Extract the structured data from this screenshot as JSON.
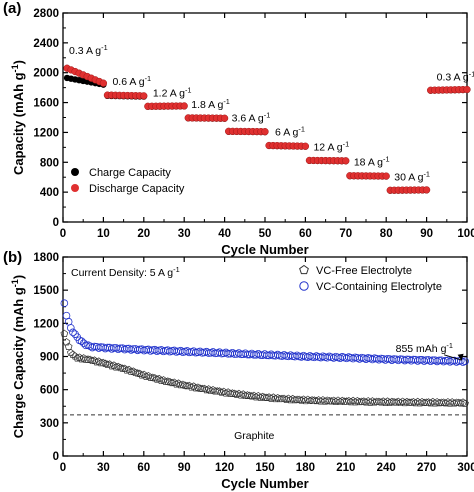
{
  "chart_data": [
    {
      "type": "scatter",
      "panel_label": "(a)",
      "xlabel": "Cycle Number",
      "ylabel": "Capacity (mAh g⁻¹)",
      "xlim": [
        0,
        100
      ],
      "ylim": [
        0,
        2800
      ],
      "xticks": [
        0,
        10,
        20,
        30,
        40,
        50,
        60,
        70,
        80,
        90,
        100
      ],
      "yticks": [
        0,
        400,
        800,
        1200,
        1600,
        2000,
        2400,
        2800
      ],
      "legend_position": "bottom-left",
      "series": [
        {
          "name": "Charge Capacity",
          "color": "#000000"
        },
        {
          "name": "Discharge Capacity",
          "color": "#e03030"
        }
      ],
      "rate_steps": [
        {
          "label": "0.3 A g⁻¹",
          "from": 1,
          "to": 10,
          "charge_start": 1930,
          "charge_end": 1840,
          "discharge_start": 2060,
          "discharge_end": 1860
        },
        {
          "label": "0.6 A g⁻¹",
          "from": 11,
          "to": 20,
          "charge_start": 1690,
          "charge_end": 1680,
          "discharge_start": 1700,
          "discharge_end": 1690
        },
        {
          "label": "1.2 A g⁻¹",
          "from": 21,
          "to": 30,
          "charge_start": 1545,
          "charge_end": 1550,
          "discharge_start": 1550,
          "discharge_end": 1555
        },
        {
          "label": "1.8 A g⁻¹",
          "from": 31,
          "to": 40,
          "charge_start": 1390,
          "charge_end": 1385,
          "discharge_start": 1395,
          "discharge_end": 1390
        },
        {
          "label": "3.6 A g⁻¹",
          "from": 41,
          "to": 50,
          "charge_start": 1210,
          "charge_end": 1205,
          "discharge_start": 1215,
          "discharge_end": 1210
        },
        {
          "label": "6 A g⁻¹",
          "from": 51,
          "to": 60,
          "charge_start": 1020,
          "charge_end": 1010,
          "discharge_start": 1025,
          "discharge_end": 1015
        },
        {
          "label": "12 A g⁻¹",
          "from": 61,
          "to": 70,
          "charge_start": 820,
          "charge_end": 815,
          "discharge_start": 825,
          "discharge_end": 820
        },
        {
          "label": "18 A g⁻¹",
          "from": 71,
          "to": 80,
          "charge_start": 615,
          "charge_end": 610,
          "discharge_start": 620,
          "discharge_end": 615
        },
        {
          "label": "30 A g⁻¹",
          "from": 81,
          "to": 90,
          "charge_start": 420,
          "charge_end": 425,
          "discharge_start": 425,
          "discharge_end": 430
        },
        {
          "label": "0.3 A g⁻¹",
          "from": 91,
          "to": 100,
          "charge_start": 1760,
          "charge_end": 1770,
          "discharge_start": 1765,
          "discharge_end": 1775
        }
      ]
    },
    {
      "type": "scatter",
      "panel_label": "(b)",
      "xlabel": "Cycle Number",
      "ylabel": "Charge Capacity (mAh g⁻¹)",
      "xlim": [
        0,
        300
      ],
      "ylim": [
        0,
        1800
      ],
      "xticks": [
        0,
        30,
        60,
        90,
        120,
        150,
        180,
        210,
        240,
        270,
        300
      ],
      "yticks": [
        0,
        300,
        600,
        900,
        1200,
        1500,
        1800
      ],
      "legend_position": "top-right",
      "annotation_density": "Current Density: 5 A g⁻¹",
      "annotation_final": "855 mAh g⁻¹",
      "reference_line": {
        "label": "Graphite",
        "y": 372
      },
      "series": [
        {
          "name": "VC-Free Electrolyte",
          "marker": "pentagon",
          "color": "#333333",
          "x": [
            1,
            3,
            6,
            10,
            15,
            20,
            30,
            45,
            60,
            75,
            90,
            105,
            120,
            135,
            150,
            165,
            180,
            200,
            230,
            260,
            300
          ],
          "y": [
            1100,
            1020,
            930,
            890,
            880,
            870,
            840,
            790,
            730,
            680,
            640,
            605,
            575,
            550,
            530,
            515,
            505,
            497,
            490,
            485,
            480
          ]
        },
        {
          "name": "VC-Containing Electrolyte",
          "marker": "circle",
          "color": "#2233cc",
          "x": [
            1,
            3,
            6,
            10,
            15,
            20,
            25,
            30,
            60,
            90,
            120,
            150,
            180,
            210,
            240,
            270,
            300
          ],
          "y": [
            1380,
            1250,
            1150,
            1080,
            1020,
            990,
            985,
            980,
            960,
            945,
            930,
            915,
            900,
            890,
            875,
            865,
            855
          ]
        }
      ]
    }
  ]
}
